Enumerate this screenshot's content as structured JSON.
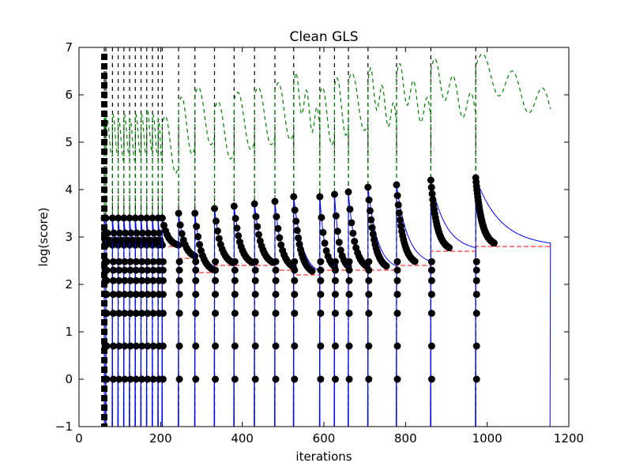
{
  "chart_data": {
    "type": "line",
    "title": "Clean GLS",
    "xlabel": "iterations",
    "ylabel": "log(score)",
    "xlim": [
      0,
      1200
    ],
    "ylim": [
      -1,
      7
    ],
    "xticks": [
      0,
      200,
      400,
      600,
      800,
      1000,
      1200
    ],
    "yticks": [
      -1,
      0,
      1,
      2,
      3,
      4,
      5,
      6,
      7
    ],
    "grid": false,
    "legend": "none",
    "colors": {
      "score": "#0000ff",
      "temperature": "#008000",
      "best": "#ff0000",
      "restart": "#000000",
      "markers": "#000000"
    },
    "restart_iterations": [
      62,
      66,
      82,
      96,
      110,
      124,
      138,
      152,
      166,
      180,
      194,
      204,
      244,
      284,
      332,
      380,
      430,
      480,
      526,
      590,
      626,
      660,
      708,
      778,
      862,
      972
    ],
    "temperature_peaks": [
      5.7,
      5.6,
      5.6,
      5.5,
      5.6,
      5.5,
      5.6,
      5.6,
      5.7,
      5.6,
      5.5,
      5.4,
      5.8,
      6.0,
      5.7,
      5.9,
      6.0,
      6.1,
      6.2,
      6.0,
      6.2,
      6.3,
      6.3,
      6.4,
      6.5,
      6.6
    ],
    "segment_peaks": [
      3.4,
      3.4,
      3.4,
      3.4,
      3.4,
      3.4,
      3.4,
      3.4,
      3.4,
      3.4,
      3.4,
      3.4,
      3.5,
      3.5,
      3.6,
      3.65,
      3.7,
      3.75,
      3.85,
      3.85,
      3.9,
      3.95,
      4.05,
      4.1,
      4.2,
      4.25
    ],
    "segment_floors": [
      2.8,
      2.8,
      2.8,
      2.8,
      2.8,
      2.8,
      2.8,
      2.8,
      2.8,
      2.8,
      2.8,
      2.8,
      2.55,
      2.25,
      2.4,
      2.4,
      2.4,
      2.3,
      2.2,
      2.3,
      2.3,
      2.3,
      2.3,
      2.4,
      2.7,
      2.8
    ],
    "best_score_final": 2.82,
    "final_iteration": 1155
  }
}
